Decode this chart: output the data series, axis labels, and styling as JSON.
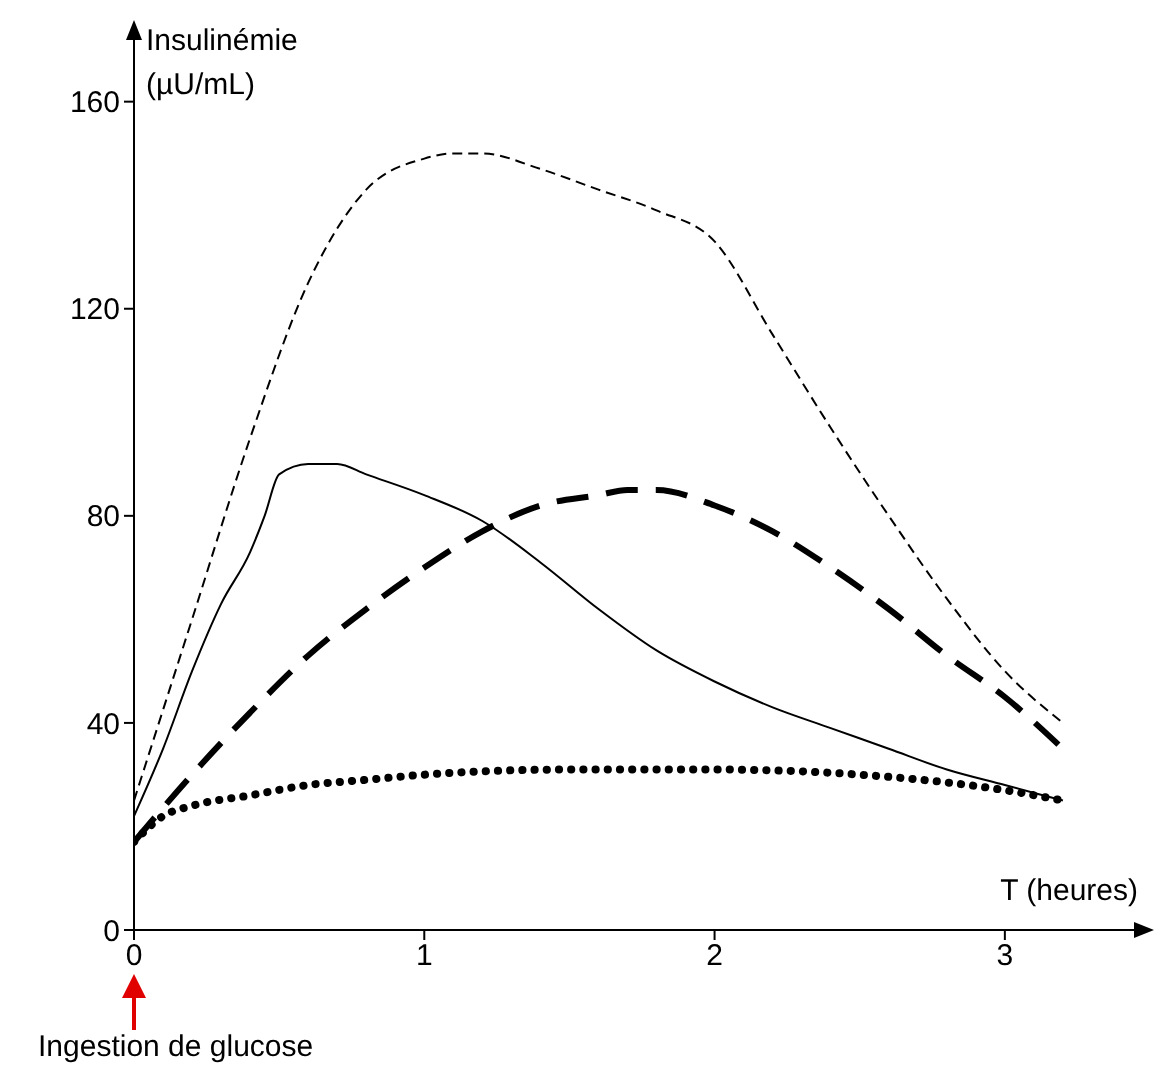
{
  "chart_data": {
    "type": "line",
    "xlabel": "T (heures)",
    "ylabel": "Insulinémie (µU/mL)",
    "annotations": [
      "Ingestion de glucose"
    ],
    "xlim": [
      0,
      3.5
    ],
    "ylim": [
      0,
      175
    ],
    "xticks": [
      0,
      1,
      2,
      3
    ],
    "yticks": [
      0,
      40,
      80,
      120,
      160
    ],
    "marker": "none",
    "series": [
      {
        "color": "#000000",
        "line_style": "dashed",
        "x": [
          0,
          0.2,
          0.4,
          0.6,
          0.8,
          1.0,
          1.1,
          1.2,
          1.4,
          1.6,
          1.8,
          2.0,
          2.2,
          2.4,
          2.6,
          2.8,
          3.0,
          3.2
        ],
        "values": [
          25,
          60,
          95,
          125,
          143,
          149,
          150,
          150,
          147,
          143,
          139,
          133,
          115,
          97,
          80,
          64,
          50,
          40
        ]
      },
      {
        "color": "#000000",
        "line_style": "solid",
        "x": [
          0,
          0.1,
          0.2,
          0.3,
          0.4,
          0.45,
          0.5,
          0.6,
          0.7,
          0.8,
          1.0,
          1.2,
          1.4,
          1.6,
          1.8,
          2.0,
          2.2,
          2.4,
          2.6,
          2.8,
          3.0,
          3.2
        ],
        "values": [
          22,
          35,
          50,
          63,
          73,
          80,
          88,
          90,
          90,
          88,
          84,
          79,
          71,
          62,
          54,
          48,
          43,
          39,
          35,
          31,
          28,
          25
        ]
      },
      {
        "color": "#000000",
        "line_style": "dashed",
        "x": [
          0,
          0.2,
          0.4,
          0.6,
          0.8,
          1.0,
          1.2,
          1.4,
          1.6,
          1.7,
          1.8,
          2.0,
          2.2,
          2.4,
          2.6,
          2.8,
          3.0,
          3.2
        ],
        "values": [
          17,
          30,
          42,
          53,
          62,
          70,
          77,
          82,
          84,
          85,
          85,
          82,
          77,
          70,
          62,
          53,
          45,
          35
        ]
      },
      {
        "color": "#000000",
        "line_style": "dotted",
        "x": [
          0,
          0.1,
          0.2,
          0.4,
          0.6,
          0.8,
          1.0,
          1.5,
          2.0,
          2.5,
          3.0,
          3.2
        ],
        "values": [
          17,
          22,
          24,
          26,
          28,
          29,
          30,
          31,
          31,
          30,
          27,
          25
        ]
      }
    ]
  }
}
